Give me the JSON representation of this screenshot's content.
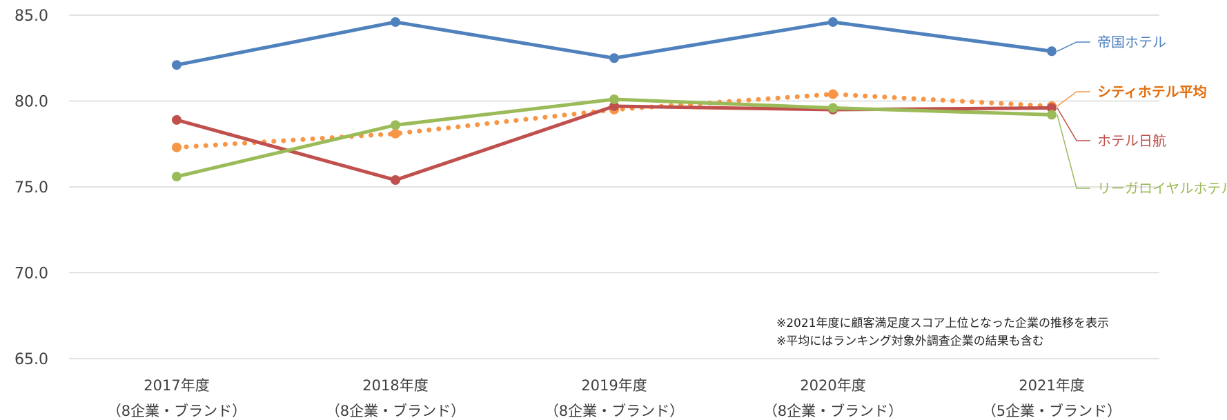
{
  "chart_data": {
    "type": "line",
    "title": "",
    "xlabel": "",
    "ylabel": "",
    "ylim": [
      65,
      85
    ],
    "yticks": [
      "85.0",
      "80.0",
      "75.0",
      "70.0",
      "65.0"
    ],
    "ytick_values": [
      85,
      80,
      75,
      70,
      65
    ],
    "grid": true,
    "categories": [
      {
        "year": "2017年度",
        "sub": "（8企業・ブランド）"
      },
      {
        "year": "2018年度",
        "sub": "（8企業・ブランド）"
      },
      {
        "year": "2019年度",
        "sub": "（8企業・ブランド）"
      },
      {
        "year": "2020年度",
        "sub": "（8企業・ブランド）"
      },
      {
        "year": "2021年度",
        "sub": "（5企業・ブランド）"
      }
    ],
    "series": [
      {
        "name": "帝国ホテル",
        "values": [
          82.1,
          84.6,
          82.5,
          84.6,
          82.9
        ],
        "color": "#4f81bd",
        "style": "solid",
        "bold": false
      },
      {
        "name": "シティホテル平均",
        "values": [
          77.3,
          78.1,
          79.5,
          80.4,
          79.7
        ],
        "color": "#f79646",
        "style": "dotted",
        "bold": true,
        "label_color": "#e46c0a"
      },
      {
        "name": "ホテル日航",
        "values": [
          78.9,
          75.4,
          79.7,
          79.5,
          79.6
        ],
        "color": "#c0504d",
        "style": "solid",
        "bold": false
      },
      {
        "name": "リーガロイヤルホテル",
        "values": [
          75.6,
          78.6,
          80.1,
          79.6,
          79.2
        ],
        "color": "#9bbb59",
        "style": "solid",
        "bold": false
      }
    ],
    "notes": [
      "※2021年度に顧客満足度スコア上位となった企業の推移を表示",
      "※平均にはランキング対象外調査企業の結果も含む"
    ]
  }
}
